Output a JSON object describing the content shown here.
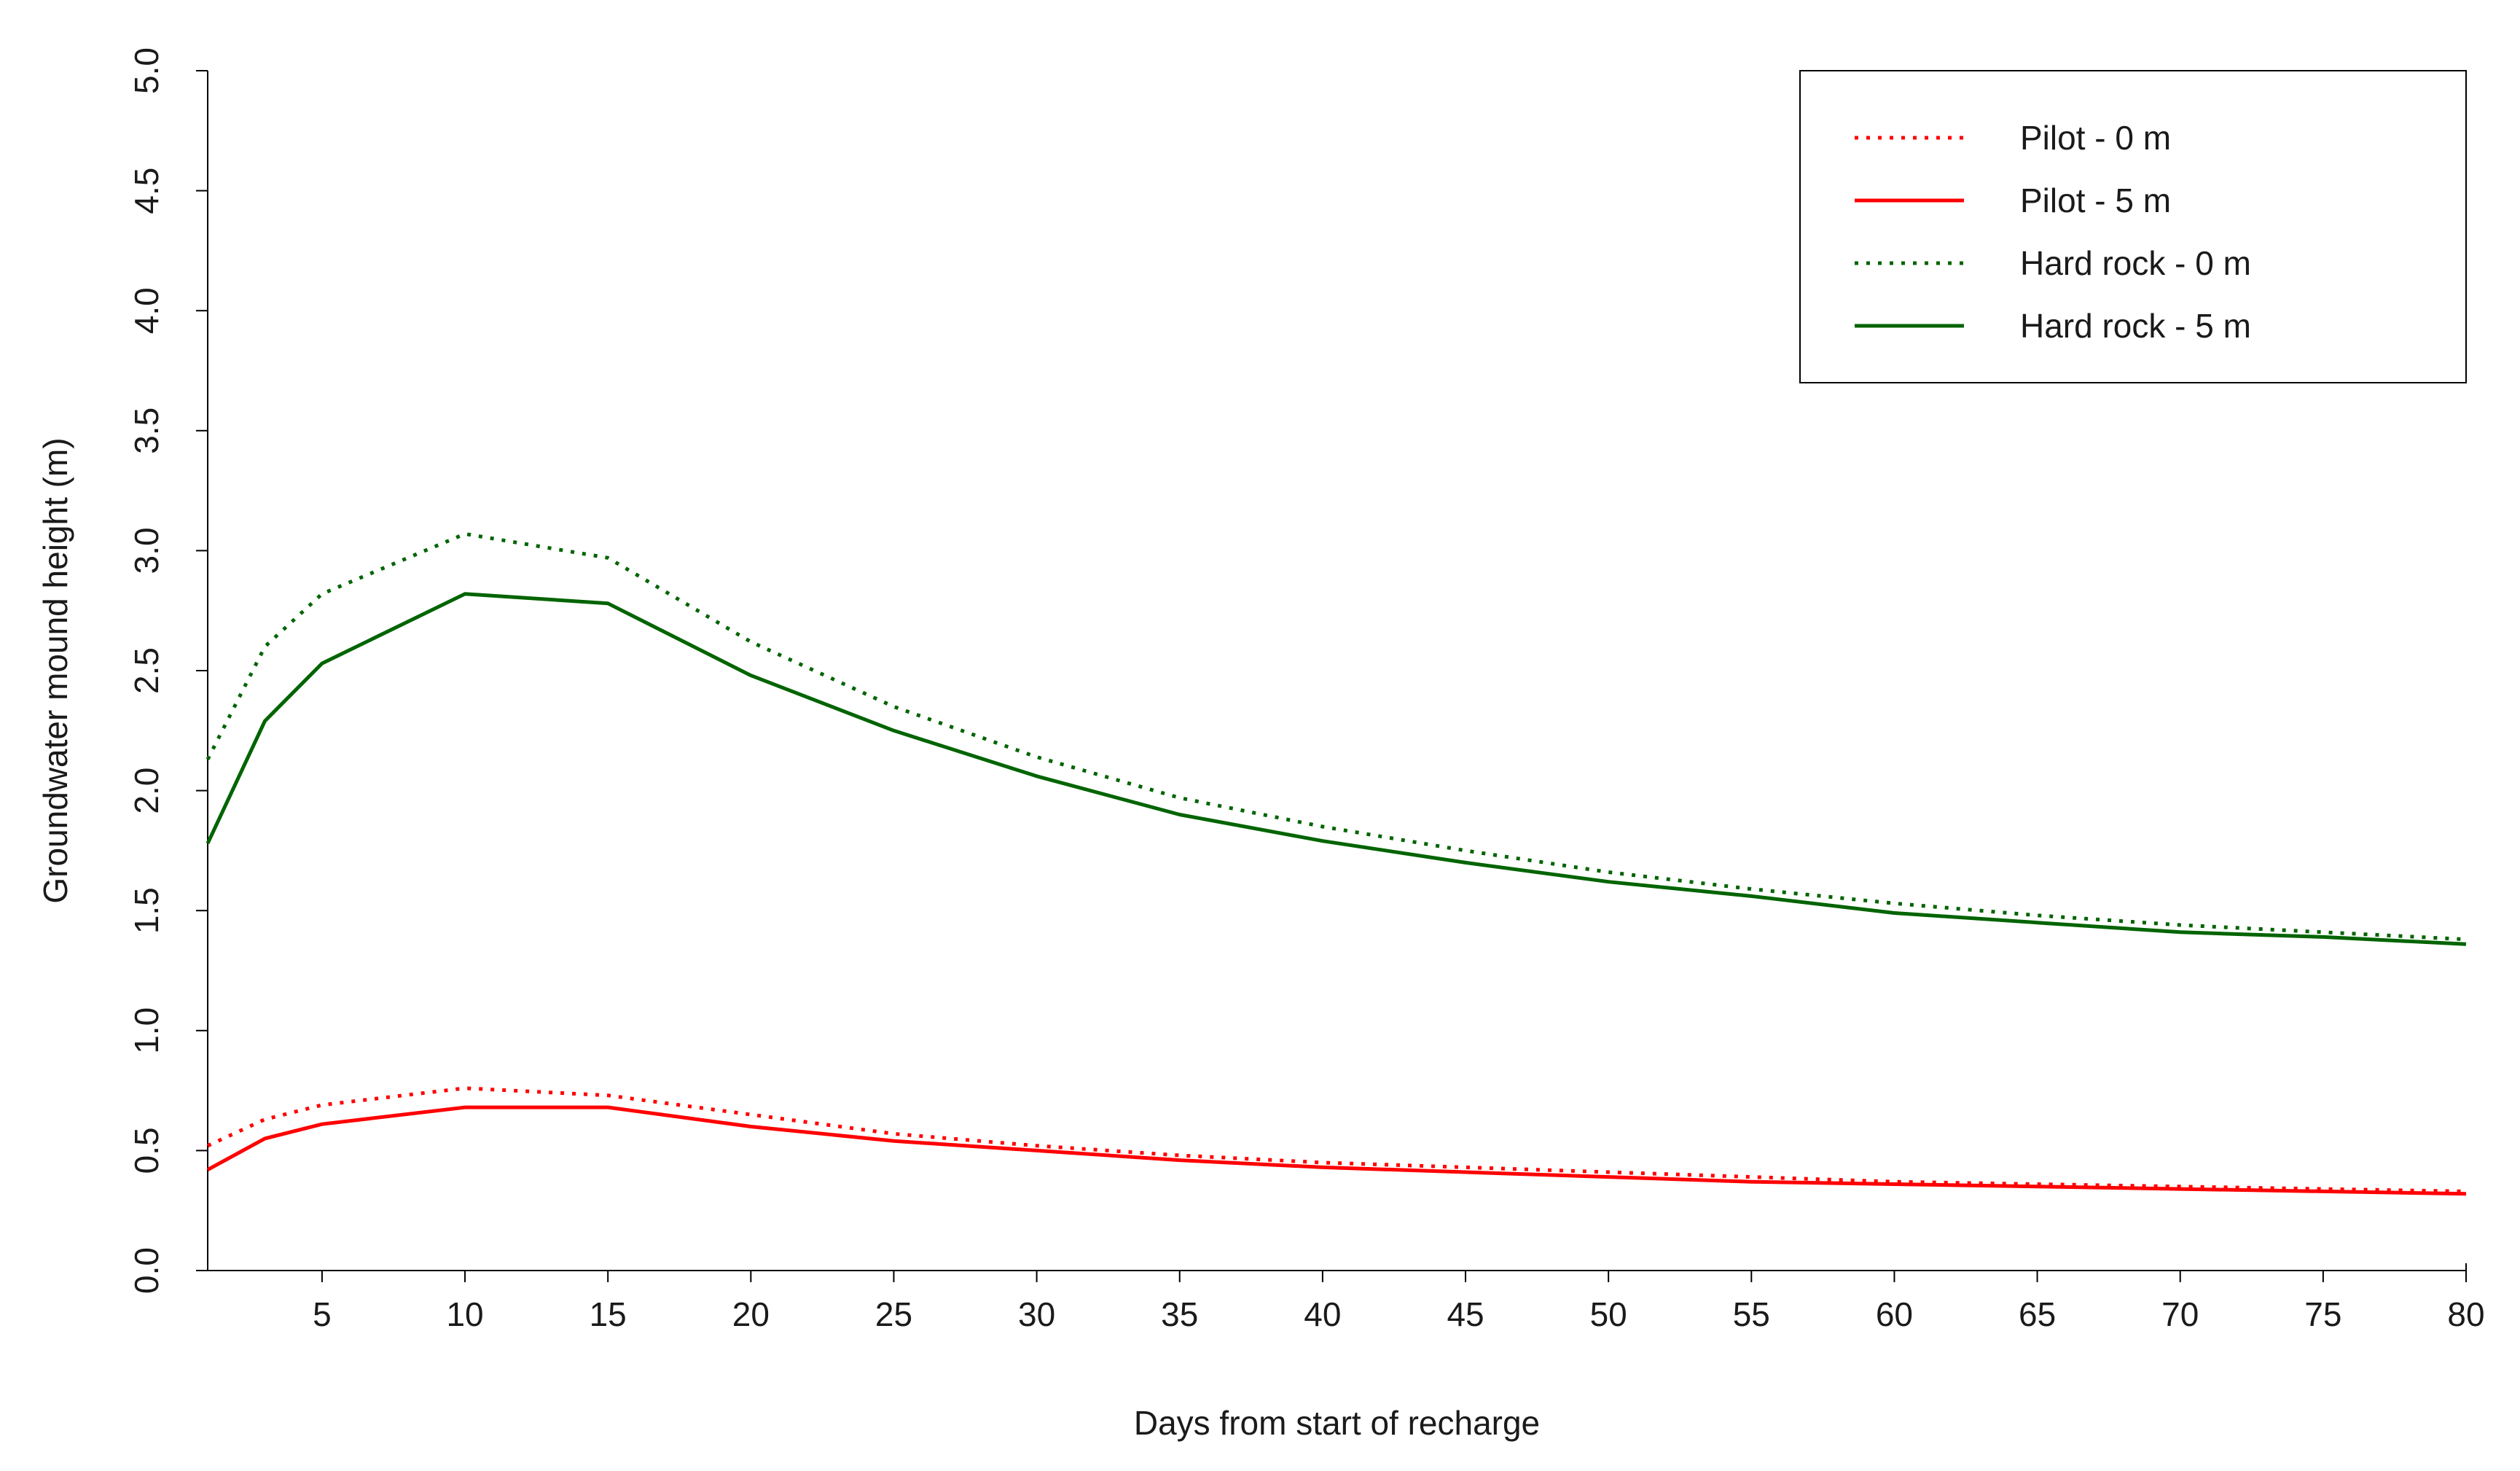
{
  "chart_data": {
    "type": "line",
    "title": "",
    "xlabel": "Days from start of recharge",
    "ylabel": "Groundwater mound height (m)",
    "xlim": [
      1,
      80
    ],
    "ylim": [
      0,
      5
    ],
    "xticks": [
      5,
      10,
      15,
      20,
      25,
      30,
      35,
      40,
      45,
      50,
      55,
      60,
      65,
      70,
      75,
      80
    ],
    "yticks": [
      "0.0",
      "0.5",
      "1.0",
      "1.5",
      "2.0",
      "2.5",
      "3.0",
      "3.5",
      "4.0",
      "4.5",
      "5.0"
    ],
    "legend_position": "top-right",
    "series": [
      {
        "name": "Pilot - 0 m",
        "color": "#ff0000",
        "style": "dotted",
        "x": [
          1,
          3,
          5,
          10,
          15,
          20,
          25,
          30,
          35,
          40,
          45,
          50,
          55,
          60,
          65,
          70,
          75,
          80
        ],
        "y": [
          0.52,
          0.63,
          0.69,
          0.76,
          0.73,
          0.65,
          0.57,
          0.52,
          0.48,
          0.45,
          0.43,
          0.41,
          0.39,
          0.37,
          0.36,
          0.35,
          0.34,
          0.33
        ]
      },
      {
        "name": "Pilot - 5 m",
        "color": "#ff0000",
        "style": "solid",
        "x": [
          1,
          3,
          5,
          10,
          15,
          20,
          25,
          30,
          35,
          40,
          45,
          50,
          55,
          60,
          65,
          70,
          75,
          80
        ],
        "y": [
          0.42,
          0.55,
          0.61,
          0.68,
          0.68,
          0.6,
          0.54,
          0.5,
          0.46,
          0.43,
          0.41,
          0.39,
          0.37,
          0.36,
          0.35,
          0.34,
          0.33,
          0.32
        ]
      },
      {
        "name": "Hard rock - 0 m",
        "color": "#006400",
        "style": "dotted",
        "x": [
          1,
          3,
          5,
          10,
          15,
          20,
          25,
          30,
          35,
          40,
          45,
          50,
          55,
          60,
          65,
          70,
          75,
          80
        ],
        "y": [
          2.13,
          2.6,
          2.82,
          3.07,
          2.97,
          2.62,
          2.35,
          2.14,
          1.97,
          1.85,
          1.75,
          1.66,
          1.59,
          1.53,
          1.48,
          1.44,
          1.41,
          1.38
        ]
      },
      {
        "name": "Hard rock - 5 m",
        "color": "#006400",
        "style": "solid",
        "x": [
          1,
          3,
          5,
          10,
          15,
          20,
          25,
          30,
          35,
          40,
          45,
          50,
          55,
          60,
          65,
          70,
          75,
          80
        ],
        "y": [
          1.78,
          2.29,
          2.53,
          2.82,
          2.78,
          2.48,
          2.25,
          2.06,
          1.9,
          1.79,
          1.7,
          1.62,
          1.56,
          1.49,
          1.45,
          1.41,
          1.39,
          1.36
        ]
      }
    ]
  }
}
